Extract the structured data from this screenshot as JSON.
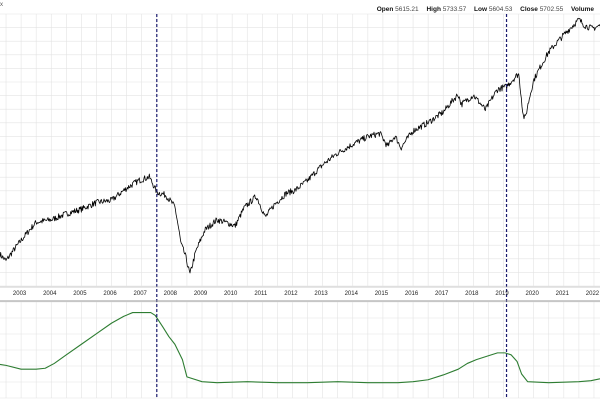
{
  "header": {
    "corner_glyph": "x",
    "ohlc": [
      {
        "label": "Open",
        "value": "5615.21"
      },
      {
        "label": "High",
        "value": "5733.57"
      },
      {
        "label": "Low",
        "value": "5604.53"
      },
      {
        "label": "Close",
        "value": "5702.55"
      },
      {
        "label": "Volume",
        "value": ""
      }
    ]
  },
  "colors": {
    "price_line": "#000000",
    "indicator_line": "#2e7d32",
    "event_line": "#1a1a6e",
    "grid": "#e3e3e3",
    "axis_text": "#222222"
  },
  "chart_data": [
    {
      "type": "line",
      "title": "",
      "x_ticks": [
        "2003",
        "2004",
        "2005",
        "2006",
        "2007",
        "2008",
        "2009",
        "2010",
        "2011",
        "2012",
        "2013",
        "2014",
        "2015",
        "2016",
        "2017",
        "2018",
        "2019",
        "2020",
        "2021",
        "2022"
      ],
      "x_range": [
        2002.8,
        2022.7
      ],
      "series": [
        {
          "x": [
            2002.8,
            2003.0,
            2003.3,
            2003.6,
            2004.0,
            2004.5,
            2005.0,
            2005.5,
            2006.0,
            2006.5,
            2007.0,
            2007.4,
            2007.75,
            2008.0,
            2008.3,
            2008.6,
            2008.8,
            2008.95,
            2009.1,
            2009.3,
            2009.6,
            2010.0,
            2010.4,
            2010.6,
            2010.9,
            2011.3,
            2011.6,
            2011.9,
            2012.3,
            2012.6,
            2013.0,
            2013.5,
            2014.0,
            2014.5,
            2015.0,
            2015.4,
            2015.65,
            2015.9,
            2016.1,
            2016.5,
            2017.0,
            2017.5,
            2018.0,
            2018.1,
            2018.5,
            2018.9,
            2019.0,
            2019.3,
            2019.6,
            2020.0,
            2020.15,
            2020.22,
            2020.5,
            2021.0,
            2021.5,
            2021.9,
            2022.0,
            2022.2,
            2022.45,
            2022.7
          ],
          "y": [
            880,
            840,
            920,
            1000,
            1110,
            1130,
            1180,
            1220,
            1280,
            1300,
            1420,
            1500,
            1540,
            1380,
            1350,
            1240,
            950,
            870,
            760,
            900,
            1050,
            1130,
            1100,
            1080,
            1230,
            1340,
            1150,
            1260,
            1370,
            1400,
            1500,
            1680,
            1830,
            1950,
            2060,
            2110,
            1920,
            2070,
            1900,
            2150,
            2280,
            2460,
            2800,
            2600,
            2780,
            2500,
            2600,
            2900,
            2960,
            3250,
            2400,
            2350,
            3100,
            3800,
            4300,
            4700,
            4800,
            4600,
            4500,
            4600
          ]
        }
      ]
    },
    {
      "type": "line",
      "title": "",
      "x_ticks": [
        "2003",
        "2004",
        "2005",
        "2006",
        "2007",
        "2008",
        "2009",
        "2010",
        "2011",
        "2012",
        "2013",
        "2014",
        "2015",
        "2016",
        "2017",
        "2018",
        "2019",
        "2020",
        "2021",
        "2022"
      ],
      "x_range": [
        2002.8,
        2022.7
      ],
      "series": [
        {
          "x": [
            2002.8,
            2003.0,
            2003.5,
            2004.0,
            2004.3,
            2004.6,
            2005.0,
            2005.5,
            2006.0,
            2006.5,
            2006.9,
            2007.2,
            2007.5,
            2007.8,
            2007.95,
            2008.2,
            2008.4,
            2008.6,
            2008.85,
            2009.0,
            2009.5,
            2010.0,
            2011.0,
            2012.0,
            2013.0,
            2014.0,
            2015.0,
            2016.0,
            2016.5,
            2017.0,
            2017.5,
            2018.0,
            2018.3,
            2018.6,
            2019.0,
            2019.3,
            2019.55,
            2019.75,
            2019.95,
            2020.1,
            2020.3,
            2021.0,
            2022.0,
            2022.4,
            2022.7
          ],
          "y": [
            0.35,
            0.34,
            0.3,
            0.3,
            0.31,
            0.36,
            0.45,
            0.56,
            0.67,
            0.78,
            0.85,
            0.89,
            0.89,
            0.89,
            0.86,
            0.74,
            0.64,
            0.56,
            0.4,
            0.22,
            0.17,
            0.16,
            0.17,
            0.16,
            0.16,
            0.17,
            0.16,
            0.16,
            0.17,
            0.19,
            0.24,
            0.3,
            0.36,
            0.4,
            0.44,
            0.47,
            0.47,
            0.45,
            0.38,
            0.25,
            0.17,
            0.16,
            0.17,
            0.18,
            0.2
          ]
        }
      ]
    }
  ],
  "event_markers": [
    2008.0,
    2019.6
  ]
}
